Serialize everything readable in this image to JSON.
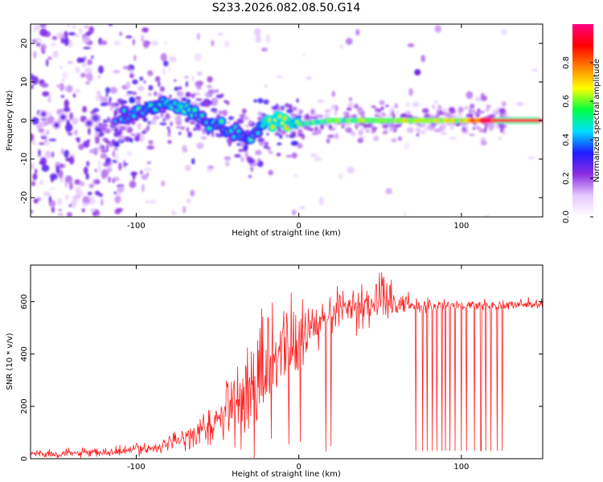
{
  "title": "S233.2026.082.08.50.G14",
  "chart_data": [
    {
      "type": "heatmap",
      "title": "",
      "xlabel": "Height of straight line (km)",
      "ylabel": "Frequency (Hz)",
      "xlim": [
        -165,
        150
      ],
      "ylim": [
        -25,
        25
      ],
      "xticks": [
        -100,
        0,
        100
      ],
      "xtick_labels": [
        "-100",
        "0",
        "100"
      ],
      "yticks": [
        -20,
        -10,
        0,
        10,
        20
      ],
      "ytick_labels": [
        "-20",
        "-10",
        "0",
        "10",
        "20"
      ],
      "colorbar": {
        "label": "Normalized spectral amplitude",
        "range": [
          0,
          1
        ],
        "ticks": [
          0,
          0.2,
          0.4,
          0.6,
          0.8
        ],
        "tick_labels": [
          "0.0",
          "0.2",
          "0.4",
          "0.6",
          "0.8"
        ],
        "stops": [
          "#ffffff",
          "#e6c8ff",
          "#8a2be2",
          "#1e1eff",
          "#00e0ff",
          "#00ff40",
          "#ffff00",
          "#ff8000",
          "#ff0000",
          "#ff0080"
        ]
      },
      "ridge": {
        "x": [
          -165,
          -120,
          -110,
          -100,
          -90,
          -80,
          -70,
          -60,
          -50,
          -40,
          -30,
          -25,
          -20,
          -10,
          0,
          20,
          40,
          60,
          80,
          100,
          120,
          150
        ],
        "freq": [
          0,
          0,
          -1,
          2,
          3,
          4,
          3,
          1,
          -1,
          -3,
          -5,
          -3,
          0,
          0,
          -1,
          0,
          0,
          0,
          0,
          0,
          0,
          0
        ],
        "amplitude": [
          0.05,
          0.15,
          0.25,
          0.3,
          0.3,
          0.35,
          0.35,
          0.3,
          0.3,
          0.3,
          0.3,
          0.3,
          0.4,
          0.5,
          0.45,
          0.5,
          0.55,
          0.6,
          0.6,
          0.6,
          0.95,
          0.95
        ]
      },
      "blobs": [
        {
          "x": 73,
          "freq": 12.5,
          "amplitude": 0.25
        }
      ]
    },
    {
      "type": "line",
      "title": "",
      "xlabel": "Height of straight line (km)",
      "ylabel": "SNR (10 * v/v)",
      "xlim": [
        -165,
        150
      ],
      "ylim": [
        0,
        740
      ],
      "xticks": [
        -100,
        0,
        100
      ],
      "xtick_labels": [
        "-100",
        "0",
        "100"
      ],
      "yticks": [
        0,
        200,
        400,
        600
      ],
      "ytick_labels": [
        "0",
        "200",
        "400",
        "600"
      ],
      "series": [
        {
          "name": "SNR",
          "color": "#ff2020",
          "x": [
            -165,
            -140,
            -120,
            -105,
            -100,
            -90,
            -80,
            -70,
            -60,
            -50,
            -40,
            -30,
            -20,
            -10,
            0,
            10,
            20,
            30,
            40,
            50,
            60,
            80,
            100,
            120,
            150
          ],
          "values": [
            20,
            20,
            22,
            30,
            40,
            40,
            55,
            80,
            110,
            150,
            200,
            260,
            330,
            420,
            460,
            500,
            550,
            580,
            590,
            600,
            590,
            585,
            585,
            585,
            590
          ],
          "noise_amplitude": [
            15,
            15,
            15,
            15,
            20,
            20,
            25,
            35,
            50,
            70,
            110,
            140,
            150,
            120,
            90,
            70,
            50,
            55,
            70,
            80,
            40,
            25,
            20,
            20,
            20
          ],
          "dropout_x": [
            72,
            76,
            79,
            82,
            85,
            88,
            90,
            93,
            96,
            100,
            103,
            108,
            112,
            115,
            118,
            122,
            125
          ],
          "dropout_floor": 30
        }
      ]
    }
  ]
}
